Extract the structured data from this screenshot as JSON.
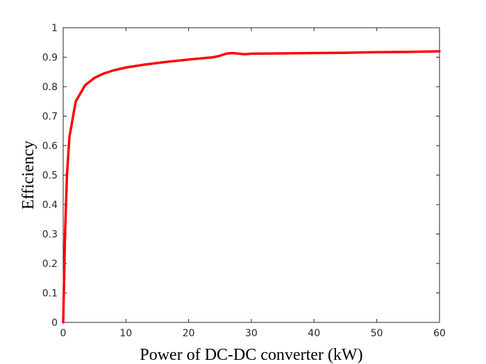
{
  "chart_data": {
    "type": "line",
    "title": "",
    "xlabel": "Power of DC-DC converter (kW)",
    "ylabel": "Efficiency",
    "xlim": [
      0,
      60
    ],
    "ylim": [
      0,
      1
    ],
    "xticks": [
      0,
      10,
      20,
      30,
      40,
      50,
      60
    ],
    "yticks": [
      0,
      0.1,
      0.2,
      0.3,
      0.4,
      0.5,
      0.6,
      0.7,
      0.8,
      0.9,
      1
    ],
    "xtick_labels": [
      "0",
      "10",
      "20",
      "30",
      "40",
      "50",
      "60"
    ],
    "ytick_labels": [
      "0",
      "0.1",
      "0.2",
      "0.3",
      "0.4",
      "0.5",
      "0.6",
      "0.7",
      "0.8",
      "0.9",
      "1"
    ],
    "grid": false,
    "legend": "none",
    "series": [
      {
        "color": "#ff0000",
        "x": [
          0,
          0.3,
          0.6,
          1,
          2,
          3.5,
          5,
          6.5,
          8,
          10,
          13,
          16,
          20,
          24,
          25,
          26,
          27,
          28,
          29,
          30,
          35,
          40,
          45,
          50,
          55,
          60
        ],
        "y": [
          0,
          0.3,
          0.5,
          0.63,
          0.75,
          0.805,
          0.83,
          0.845,
          0.855,
          0.865,
          0.875,
          0.883,
          0.892,
          0.9,
          0.905,
          0.912,
          0.914,
          0.912,
          0.91,
          0.912,
          0.913,
          0.914,
          0.915,
          0.917,
          0.918,
          0.92
        ]
      }
    ]
  }
}
